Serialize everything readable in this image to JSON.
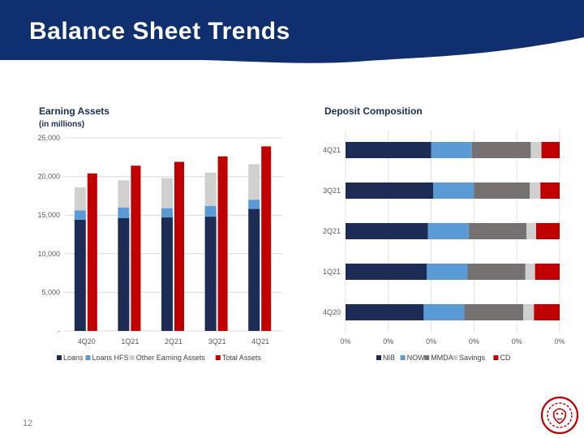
{
  "slide": {
    "title": "Balance Sheet Trends",
    "page_number": "12",
    "colors": {
      "banner": "#0f2f6e",
      "accent": "#c00000"
    }
  },
  "chart_data": [
    {
      "type": "bar",
      "title": "Earning Assets",
      "subtitle": "(in millions)",
      "categories": [
        "4Q20",
        "1Q21",
        "2Q21",
        "3Q21",
        "4Q21"
      ],
      "stacked_series": [
        {
          "name": "Loans",
          "color": "#1c2c54",
          "values": [
            14400,
            14600,
            14700,
            14800,
            15800
          ]
        },
        {
          "name": "Loans HFS",
          "color": "#5b9bd5",
          "values": [
            1200,
            1400,
            1200,
            1400,
            1200
          ]
        },
        {
          "name": "Other Earning Assets",
          "color": "#d0d0d0",
          "values": [
            3000,
            3500,
            3900,
            4300,
            4600
          ]
        }
      ],
      "side_series": {
        "name": "Total Assets",
        "color": "#c00000",
        "values": [
          20400,
          21400,
          21900,
          22600,
          23900
        ]
      },
      "ylim": [
        0,
        25000
      ],
      "yticks": [
        0,
        5000,
        10000,
        15000,
        20000,
        25000
      ],
      "ytick_labels": [
        "-",
        "5,000",
        "10,000",
        "15,000",
        "20,000",
        "25,000"
      ],
      "grid": true,
      "legend_position": "bottom"
    },
    {
      "type": "bar",
      "orientation": "horizontal",
      "stacked_percent": true,
      "title": "Deposit Composition",
      "categories": [
        "4Q21",
        "3Q21",
        "2Q21",
        "1Q21",
        "4Q20"
      ],
      "series": [
        {
          "name": "NIB",
          "color": "#1c2c54",
          "values": [
            40,
            41,
            38.5,
            38,
            36.5
          ]
        },
        {
          "name": "NOW",
          "color": "#5b9bd5",
          "values": [
            19,
            19,
            19,
            19,
            19
          ]
        },
        {
          "name": "MMDA",
          "color": "#767171",
          "values": [
            27.5,
            26,
            27,
            27,
            27.5
          ]
        },
        {
          "name": "Savings",
          "color": "#d0d0d0",
          "values": [
            5,
            5,
            4.5,
            4.5,
            5
          ]
        },
        {
          "name": "CD",
          "color": "#c00000",
          "values": [
            8.5,
            9,
            11,
            11.5,
            12
          ]
        }
      ],
      "xtick_labels": [
        "0%",
        "0%",
        "0%",
        "0%",
        "0%",
        "0%"
      ],
      "grid": true,
      "legend_position": "bottom"
    }
  ]
}
